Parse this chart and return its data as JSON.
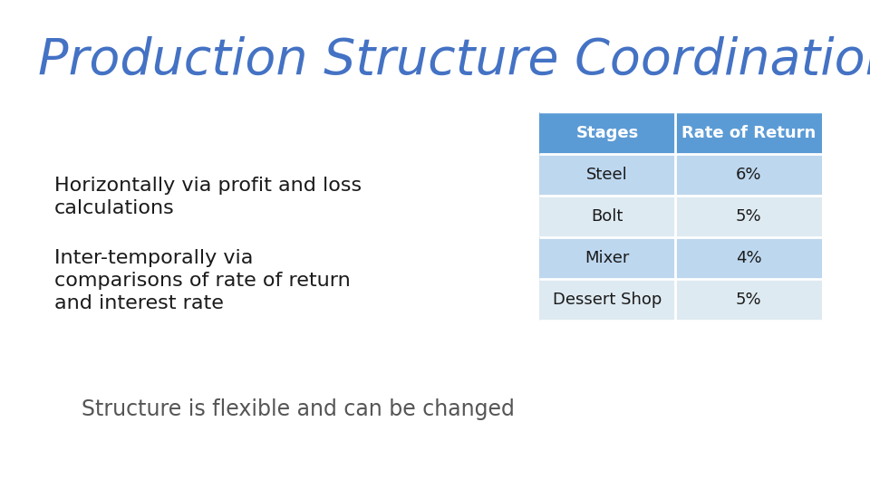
{
  "title": "Production Structure Coordination",
  "title_color": "#4472C4",
  "background_color": "#ffffff",
  "bullet1_line1": "Horizontally via profit and loss",
  "bullet1_line2": "calculations",
  "bullet2_line1": "Inter-temporally via",
  "bullet2_line2": "comparisons of rate of return",
  "bullet2_line3": "and interest rate",
  "footer": "Structure is flexible and can be changed",
  "table_header": [
    "Stages",
    "Rate of Return"
  ],
  "table_rows": [
    [
      "Steel",
      "6%"
    ],
    [
      "Bolt",
      "5%"
    ],
    [
      "Mixer",
      "4%"
    ],
    [
      "Dessert Shop",
      "5%"
    ]
  ],
  "header_bg": "#5B9BD5",
  "header_text": "#ffffff",
  "row_odd_bg": "#BDD7EE",
  "row_even_bg": "#DEEAF1",
  "row_text": "#1a1a1a",
  "text_color": "#1a1a1a",
  "footer_color": "#555555",
  "title_fontsize": 40,
  "body_fontsize": 16,
  "footer_fontsize": 17,
  "table_fontsize": 13
}
